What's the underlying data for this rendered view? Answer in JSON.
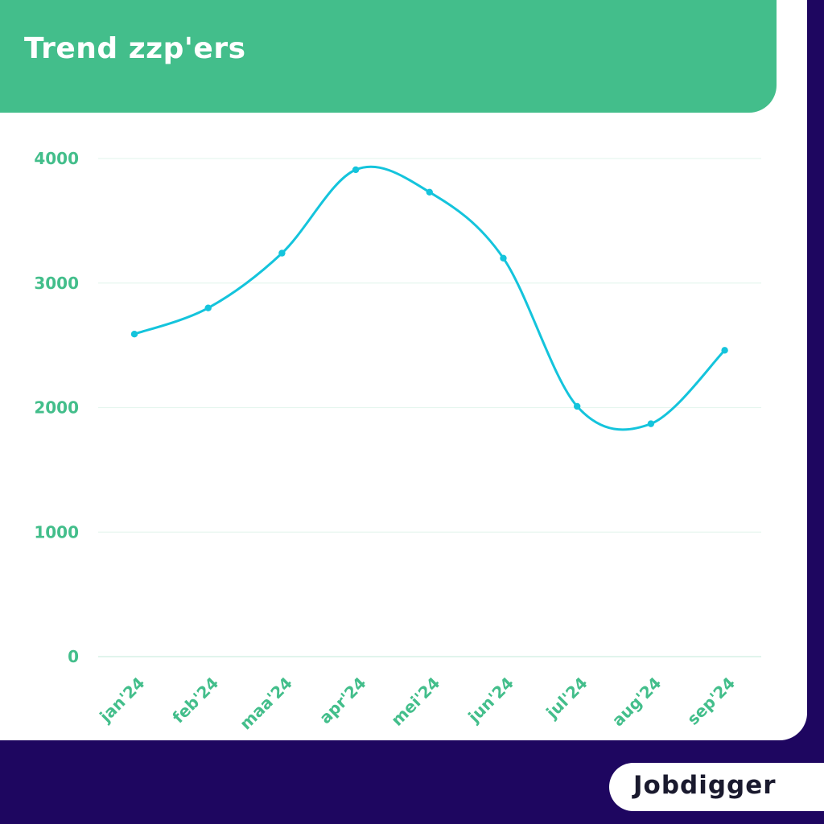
{
  "header": {
    "title": "Trend zzp'ers"
  },
  "brand": {
    "logo_text": "Jobdigger"
  },
  "colors": {
    "background": "#1e0660",
    "accent": "#43be8b",
    "line": "#14c4dc",
    "card": "#ffffff"
  },
  "chart_data": {
    "type": "line",
    "categories": [
      "jan'24",
      "feb'24",
      "maa'24",
      "apr'24",
      "mei'24",
      "jun'24",
      "jul'24",
      "aug'24",
      "sep'24"
    ],
    "series": [
      {
        "values": [
          2590,
          2800,
          3240,
          3910,
          3730,
          3200,
          2010,
          1870,
          2460
        ]
      }
    ],
    "yticks": [
      0,
      1000,
      2000,
      3000,
      4000
    ],
    "ylim": [
      0,
      4000
    ],
    "title": "Trend zzp'ers",
    "xlabel": "",
    "ylabel": "",
    "grid": true,
    "smooth": true
  }
}
